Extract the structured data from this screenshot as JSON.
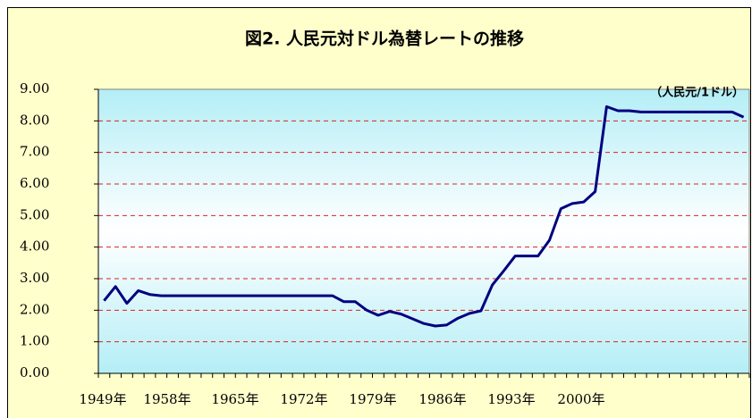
{
  "chart_data": {
    "type": "line",
    "title": "図2. 人民元対ドル為替レートの推移",
    "unit_label": "（人民元/1ドル）",
    "values": [
      2.3,
      2.75,
      2.22,
      2.62,
      2.5,
      2.46,
      2.46,
      2.46,
      2.46,
      2.46,
      2.46,
      2.46,
      2.46,
      2.46,
      2.46,
      2.46,
      2.46,
      2.46,
      2.46,
      2.46,
      2.46,
      2.27,
      2.27,
      2.0,
      1.84,
      1.96,
      1.88,
      1.73,
      1.58,
      1.5,
      1.53,
      1.75,
      1.9,
      1.98,
      2.8,
      3.25,
      3.72,
      3.72,
      3.72,
      4.22,
      5.22,
      5.38,
      5.43,
      5.76,
      8.45,
      8.32,
      8.32,
      8.28,
      8.28,
      8.28,
      8.28,
      8.28,
      8.28,
      8.28,
      8.28,
      8.28,
      8.12
    ],
    "color": "#000080",
    "xlabels": [
      "1949年",
      "1958年",
      "1965年",
      "1972年",
      "1979年",
      "1986年",
      "1993年",
      "2000年"
    ],
    "ylim": [
      0,
      9
    ],
    "yticks": [
      {
        "value": 0,
        "label": "0.00"
      },
      {
        "value": 1,
        "label": "1.00"
      },
      {
        "value": 2,
        "label": "2.00"
      },
      {
        "value": 3,
        "label": "3.00"
      },
      {
        "value": 4,
        "label": "4.00"
      },
      {
        "value": 5,
        "label": "5.00"
      },
      {
        "value": 6,
        "label": "6.00"
      },
      {
        "value": 7,
        "label": "7.00"
      },
      {
        "value": 8,
        "label": "8.00"
      },
      {
        "value": 9,
        "label": "9.00"
      }
    ],
    "grid": true
  }
}
